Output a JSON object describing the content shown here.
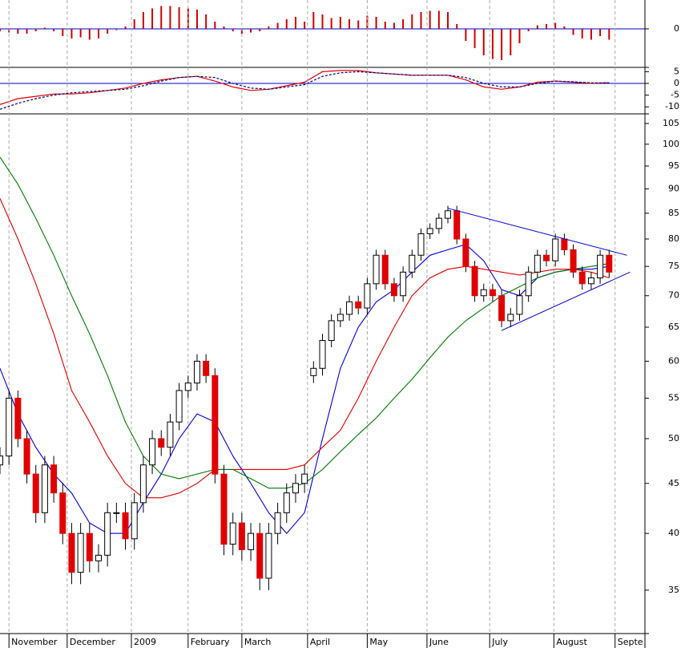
{
  "chart_data": [
    {
      "type": "bar",
      "color": "#cc0000",
      "baseline_color": "#0000cc",
      "x": [
        0,
        3,
        6,
        9,
        12,
        15,
        18,
        21,
        24,
        27,
        30,
        33,
        36,
        39,
        42,
        45,
        48,
        51,
        54,
        57,
        60,
        63,
        66,
        69,
        72,
        75,
        78,
        81,
        84,
        87,
        90,
        93,
        96,
        99,
        102,
        105,
        108,
        111,
        114,
        117,
        120,
        123,
        126,
        129,
        132,
        135,
        138,
        141,
        144,
        147,
        150,
        153,
        156,
        159,
        162,
        165,
        168,
        171,
        174,
        177,
        180,
        183,
        186,
        189,
        192,
        195,
        198,
        201,
        204
      ],
      "values": [
        -0.1,
        -0.15,
        -0.2,
        -0.2,
        -0.1,
        0.05,
        -0.1,
        -0.3,
        -0.4,
        -0.35,
        -0.45,
        -0.4,
        -0.2,
        -0.05,
        0.1,
        0.4,
        0.7,
        0.85,
        0.95,
        0.95,
        0.9,
        0.85,
        0.8,
        0.6,
        0.3,
        0.1,
        -0.1,
        -0.2,
        -0.15,
        -0.1,
        0.1,
        0.25,
        0.4,
        0.5,
        0.3,
        0.7,
        0.6,
        0.45,
        0.5,
        0.4,
        0.35,
        0.55,
        0.5,
        0.3,
        0.25,
        0.4,
        0.6,
        0.7,
        0.75,
        0.75,
        0.7,
        0.2,
        -0.5,
        -0.8,
        -1.1,
        -1.25,
        -1.3,
        -1.1,
        -0.6,
        -0.1,
        0.15,
        0.2,
        0.25,
        0.1,
        -0.25,
        -0.4,
        -0.45,
        -0.3,
        -0.45
      ],
      "xlim": [
        0,
        216
      ],
      "ylim": [
        -1.6,
        1.2
      ],
      "yticks": [
        0
      ]
    },
    {
      "type": "line",
      "baseline_color": "#0000cc",
      "series": [
        {
          "color": "#e00000",
          "dashed": false,
          "x": [
            0,
            6,
            12,
            18,
            24,
            30,
            36,
            42,
            48,
            54,
            60,
            66,
            72,
            78,
            84,
            90,
            96,
            102,
            108,
            114,
            120,
            126,
            132,
            138,
            144,
            150,
            156,
            162,
            168,
            174,
            180,
            186,
            192,
            198,
            204
          ],
          "values": [
            -9,
            -6.5,
            -5.5,
            -4.5,
            -4.5,
            -4,
            -3,
            -2,
            0,
            1.5,
            2.5,
            3,
            1,
            -1.5,
            -3,
            -2.5,
            -1,
            0.5,
            5,
            5.5,
            5.5,
            4.5,
            4,
            3.5,
            3.5,
            3.5,
            1.5,
            -1.5,
            -2.5,
            -1.5,
            0.5,
            1,
            0.5,
            0,
            0.3
          ]
        },
        {
          "color": "#000080",
          "dashed": true,
          "x": [
            0,
            6,
            12,
            18,
            24,
            30,
            36,
            42,
            48,
            54,
            60,
            66,
            72,
            78,
            84,
            90,
            96,
            102,
            108,
            114,
            120,
            126,
            132,
            138,
            144,
            150,
            156,
            162,
            168,
            174,
            180,
            186,
            192,
            198,
            204
          ],
          "values": [
            -11,
            -8.5,
            -6.5,
            -5,
            -4,
            -3.5,
            -3,
            -2.5,
            -1,
            1,
            2.5,
            3,
            2.5,
            0,
            -2,
            -2.5,
            -1.5,
            -0.5,
            3,
            4.5,
            5,
            4.5,
            4,
            3.5,
            3.5,
            3.5,
            2.5,
            0,
            -1.5,
            -1.5,
            0,
            1,
            0.7,
            0.2,
            0.2
          ]
        }
      ],
      "xlim": [
        0,
        216
      ],
      "ylim": [
        -13,
        6.5
      ],
      "yticks": [
        5,
        0,
        -5,
        -10
      ]
    },
    {
      "type": "candlestick",
      "log_scale": true,
      "up_color": "#ffffff",
      "down_color": "#e00000",
      "x": [
        0,
        3,
        6,
        9,
        12,
        15,
        18,
        21,
        24,
        27,
        30,
        33,
        36,
        39,
        42,
        45,
        48,
        51,
        54,
        57,
        60,
        63,
        66,
        69,
        72,
        75,
        78,
        81,
        84,
        87,
        90,
        93,
        96,
        99,
        102,
        105,
        108,
        111,
        114,
        117,
        120,
        123,
        126,
        129,
        132,
        135,
        138,
        141,
        144,
        147,
        150,
        153,
        156,
        159,
        162,
        165,
        168,
        171,
        174,
        177,
        180,
        183,
        186,
        189,
        192,
        195,
        198,
        201,
        204
      ],
      "open": [
        47,
        48,
        55,
        50,
        46,
        42,
        47,
        44,
        40,
        36.5,
        40,
        37.5,
        38,
        42,
        42,
        39.5,
        43,
        47,
        50,
        49,
        52,
        56,
        57,
        60,
        58,
        46,
        39,
        41,
        38.5,
        40,
        36,
        40,
        42,
        44,
        45,
        58,
        59,
        63,
        66,
        67,
        69,
        68,
        72,
        77,
        72,
        70,
        74,
        77,
        81,
        82,
        84,
        85.5,
        80,
        75,
        70,
        71,
        70,
        66,
        67,
        70,
        74,
        77,
        76,
        80,
        78,
        74,
        72,
        73,
        77
      ],
      "high": [
        49,
        56,
        56,
        51,
        47,
        48,
        48,
        45,
        41,
        41,
        41,
        39,
        43,
        43,
        43,
        44,
        48,
        51,
        51,
        53,
        57,
        58,
        61,
        61,
        59,
        47,
        42,
        42,
        41,
        41,
        41,
        43,
        45,
        46,
        47,
        60,
        64,
        67,
        68,
        70,
        70,
        73,
        78,
        78,
        73,
        75,
        78,
        82,
        83,
        85,
        86.5,
        86.5,
        81,
        76,
        72,
        72,
        71,
        68,
        71,
        75,
        78,
        78,
        81,
        81,
        79,
        75,
        74,
        78,
        78
      ],
      "low": [
        46,
        47,
        49,
        45,
        41,
        41,
        43,
        39,
        35.5,
        35.5,
        36.5,
        36.5,
        37,
        41,
        38.5,
        38.5,
        42,
        46,
        48,
        48,
        51,
        55,
        56,
        57,
        45,
        38,
        38,
        37.5,
        37.5,
        35,
        35,
        39,
        41,
        43,
        44,
        57,
        58,
        62,
        65,
        66,
        67,
        67,
        71,
        71,
        69,
        69,
        73,
        76,
        80,
        81,
        83,
        79,
        74,
        69,
        69,
        69,
        65,
        65,
        66,
        69,
        73,
        75,
        75,
        77,
        73,
        71,
        71,
        72,
        73
      ],
      "close": [
        48,
        55,
        50,
        46,
        42,
        47,
        44,
        40,
        36.5,
        40,
        37.5,
        38,
        42,
        42,
        39.5,
        43,
        47,
        50,
        49,
        52,
        56,
        57,
        60,
        58,
        46,
        39,
        41,
        38.5,
        40,
        36,
        40,
        42,
        44,
        45,
        46,
        59,
        63,
        66,
        67,
        69,
        68,
        72,
        77,
        72,
        70,
        74,
        77,
        81,
        82,
        84,
        85.5,
        80,
        75,
        70,
        71,
        70,
        66,
        67,
        70,
        74,
        77,
        76,
        80,
        78,
        74,
        72,
        73,
        77,
        74
      ],
      "series": [
        {
          "color": "#0000dd",
          "x": [
            0,
            6,
            12,
            18,
            24,
            30,
            36,
            42,
            48,
            54,
            60,
            66,
            72,
            78,
            84,
            90,
            96,
            102,
            108,
            114,
            120,
            126,
            132,
            138,
            144,
            150,
            156,
            162,
            168,
            174,
            180,
            186,
            192,
            198,
            204
          ],
          "values": [
            59,
            53,
            49,
            46,
            44,
            41,
            40,
            40,
            43,
            46,
            50,
            53,
            52,
            48,
            45,
            42,
            40,
            42,
            50,
            59,
            65,
            69,
            71,
            74,
            77,
            78,
            79,
            76,
            71,
            70,
            73,
            74,
            74.5,
            74.5,
            75
          ]
        },
        {
          "color": "#dd0000",
          "x": [
            0,
            6,
            12,
            18,
            24,
            30,
            36,
            42,
            48,
            54,
            60,
            66,
            72,
            78,
            84,
            90,
            96,
            102,
            108,
            114,
            120,
            126,
            132,
            138,
            144,
            150,
            156,
            162,
            168,
            174,
            180,
            186,
            192,
            198,
            204
          ],
          "values": [
            88,
            80,
            72,
            64,
            56,
            52,
            48,
            45,
            43.5,
            43.5,
            44,
            45,
            46.5,
            46.5,
            46.5,
            46.5,
            46.5,
            47,
            49,
            51,
            55,
            60,
            65,
            70,
            73,
            74.5,
            75,
            74.5,
            74,
            73.5,
            74,
            74.5,
            74.5,
            74,
            73
          ]
        },
        {
          "color": "#007700",
          "x": [
            0,
            6,
            12,
            18,
            24,
            30,
            36,
            42,
            48,
            54,
            60,
            66,
            72,
            78,
            84,
            90,
            96,
            102,
            108,
            114,
            120,
            126,
            132,
            138,
            144,
            150,
            156,
            162,
            168,
            174,
            180,
            186,
            192,
            198,
            204
          ],
          "values": [
            97,
            91,
            84,
            77,
            70,
            64,
            58,
            52,
            48,
            46,
            45.5,
            46,
            46.5,
            46.5,
            45.5,
            44.5,
            44.5,
            45,
            46.5,
            48.5,
            50.5,
            52.5,
            55,
            57.5,
            60.5,
            63.5,
            66,
            68,
            70,
            71.5,
            73,
            74,
            74.5,
            75,
            75.5
          ]
        }
      ],
      "trendlines": [
        {
          "color": "#0000cc",
          "x": [
            150,
            210
          ],
          "values": [
            86,
            77
          ]
        },
        {
          "color": "#0000cc",
          "x": [
            168,
            211
          ],
          "values": [
            64.5,
            74
          ]
        }
      ],
      "xlim": [
        0,
        216
      ],
      "ylim": [
        31.6,
        107.4
      ],
      "yticks": [
        35,
        40,
        45,
        50,
        55,
        60,
        65,
        70,
        75,
        80,
        85,
        90,
        95,
        100,
        105
      ],
      "xticks": [
        {
          "value": 3,
          "label": "November"
        },
        {
          "value": 22.5,
          "label": "December"
        },
        {
          "value": 44,
          "label": "2009"
        },
        {
          "value": 63,
          "label": "February"
        },
        {
          "value": 81,
          "label": "March"
        },
        {
          "value": 103,
          "label": "April"
        },
        {
          "value": 123,
          "label": "May"
        },
        {
          "value": 143,
          "label": "June"
        },
        {
          "value": 164,
          "label": "July"
        },
        {
          "value": 185.5,
          "label": "August"
        },
        {
          "value": 206,
          "label": "Septe"
        }
      ]
    }
  ]
}
